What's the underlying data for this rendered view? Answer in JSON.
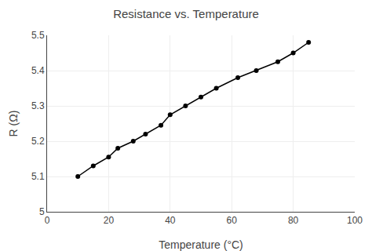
{
  "chart_data": {
    "type": "line",
    "title": "Resistance vs. Temperature",
    "xlabel": "Temperature (°C)",
    "ylabel": "R (Ω)",
    "x": [
      10,
      15,
      20,
      23,
      28,
      32,
      37,
      40,
      45,
      50,
      55,
      62,
      68,
      75,
      80,
      85
    ],
    "values": [
      5.1,
      5.13,
      5.155,
      5.18,
      5.2,
      5.22,
      5.245,
      5.275,
      5.3,
      5.325,
      5.35,
      5.38,
      5.4,
      5.425,
      5.45,
      5.48
    ],
    "xlim": [
      0,
      100
    ],
    "ylim": [
      5,
      5.5
    ],
    "xticks": [
      0,
      20,
      40,
      60,
      80,
      100
    ],
    "yticks": [
      5,
      5.1,
      5.2,
      5.3,
      5.4,
      5.5
    ],
    "color": "#000000",
    "marker": "circle",
    "grid": true
  }
}
